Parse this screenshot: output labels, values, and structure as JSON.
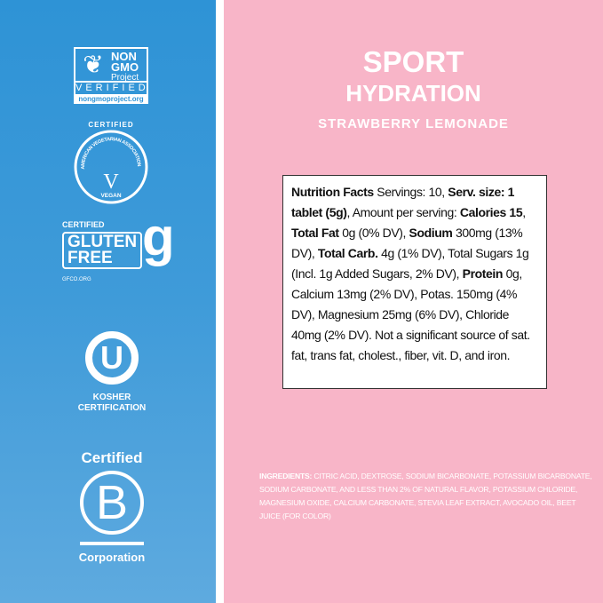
{
  "certifications": {
    "non_gmo": {
      "line1": "NON",
      "line2": "GMO",
      "line3": "Project",
      "verified": "VERIFIED",
      "url": "nongmoproject.org"
    },
    "vegan": {
      "top": "CERTIFIED",
      "ring": "AMERICAN VEGETARIAN ASSOCIATION",
      "letter": "V",
      "bottom": "VEGAN"
    },
    "gluten_free": {
      "certified": "CERTIFIED",
      "gluten": "GLUTEN",
      "free": "FREE",
      "letter": "g",
      "org": "GFCO.ORG"
    },
    "kosher": {
      "letter": "U",
      "line1": "KOSHER",
      "line2": "CERTIFICATION"
    },
    "bcorp": {
      "certified": "Certified",
      "letter": "B",
      "corporation": "Corporation"
    }
  },
  "product": {
    "title1": "SPORT",
    "title2": "HYDRATION",
    "flavor": "STRAWBERRY LEMONADE"
  },
  "nutrition": [
    {
      "b": "Nutrition Facts",
      "t": " Servings: 10, "
    },
    {
      "b": "Serv. size: 1 tablet (5g)",
      "t": ", Amount per serving: "
    },
    {
      "b": "Calories 15",
      "t": ", "
    },
    {
      "b": "Total Fat",
      "t": " 0g (0% DV), "
    },
    {
      "b": "Sodium",
      "t": " 300mg (13% DV), "
    },
    {
      "b": "Total Carb.",
      "t": " 4g (1% DV), Total Sugars 1g (Incl. 1g Added Sugars, 2% DV), "
    },
    {
      "b": "Protein",
      "t": " 0g, Calcium 13mg (2% DV), Potas. 150mg (4% DV), Magnesium 25mg (6% DV), Chloride 40mg (2% DV). Not a significant source of sat. fat, trans fat, cholest., fiber, vit. D, and iron."
    }
  ],
  "ingredients": {
    "label": "INGREDIENTS:",
    "text": " CITRIC ACID, DEXTROSE, SODIUM BICARBONATE, POTASSIUM BICARBONATE, SODIUM CARBONATE, AND LESS THAN 2% OF NATURAL FLAVOR, POTASSIUM CHLORIDE, MAGNESIUM OXIDE, CALCIUM CARBONATE, STEVIA LEAF EXTRACT, AVOCADO OIL, BEET JUICE (FOR COLOR)"
  },
  "colors": {
    "left_panel": "#2e93d6",
    "right_panel": "#f8b5c8"
  }
}
